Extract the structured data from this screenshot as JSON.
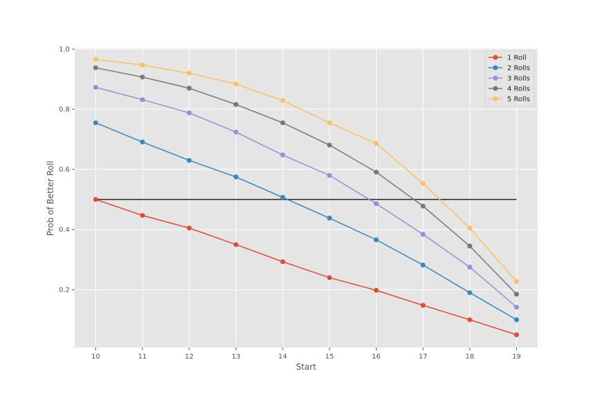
{
  "chart_data": {
    "type": "line",
    "title": "",
    "xlabel": "Start",
    "ylabel": "Prob of Better Roll",
    "x": [
      10,
      11,
      12,
      13,
      14,
      15,
      16,
      17,
      18,
      19
    ],
    "xlim": [
      9.55,
      19.45
    ],
    "ylim": [
      0.0075,
      1.0025
    ],
    "xticks": [
      "10",
      "11",
      "12",
      "13",
      "14",
      "15",
      "16",
      "17",
      "18",
      "19"
    ],
    "yticks": [
      "0.2",
      "0.4",
      "0.6",
      "0.8",
      "1.0"
    ],
    "grid": true,
    "legend_position": "top-right",
    "series": [
      {
        "name": "1 Roll",
        "color": "#e24a33",
        "values": [
          0.5,
          0.447,
          0.405,
          0.35,
          0.293,
          0.24,
          0.198,
          0.148,
          0.1,
          0.05
        ]
      },
      {
        "name": "2 Rolls",
        "color": "#348abd",
        "values": [
          0.755,
          0.691,
          0.63,
          0.575,
          0.507,
          0.438,
          0.366,
          0.282,
          0.19,
          0.1
        ]
      },
      {
        "name": "3 Rolls",
        "color": "#988ed5",
        "values": [
          0.873,
          0.832,
          0.788,
          0.724,
          0.648,
          0.58,
          0.486,
          0.384,
          0.275,
          0.142
        ]
      },
      {
        "name": "4 Rolls",
        "color": "#777777",
        "values": [
          0.938,
          0.907,
          0.87,
          0.816,
          0.755,
          0.681,
          0.591,
          0.478,
          0.345,
          0.185
        ]
      },
      {
        "name": "5 Rolls",
        "color": "#fbc15e",
        "values": [
          0.966,
          0.947,
          0.92,
          0.884,
          0.829,
          0.755,
          0.686,
          0.553,
          0.405,
          0.227
        ]
      }
    ],
    "reference_line": {
      "y": 0.5,
      "x_range": [
        10,
        19
      ],
      "color": "#222222"
    }
  }
}
